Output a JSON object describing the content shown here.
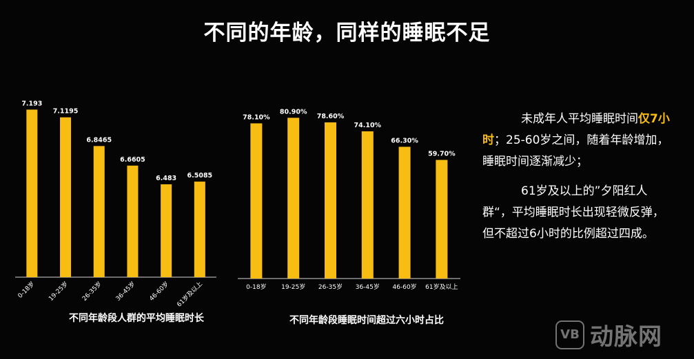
{
  "title": "不同的年龄，同样的睡眠不足",
  "chart_data": [
    {
      "type": "bar",
      "title": "不同年龄段人群的平均睡眠时长",
      "categories": [
        "0-18岁",
        "19-25岁",
        "26-35岁",
        "36-45岁",
        "46-60岁",
        "61岁及以上"
      ],
      "values": [
        7.193,
        7.1195,
        6.8465,
        6.6605,
        6.483,
        6.5085
      ],
      "labels": [
        "7.193",
        "7.1195",
        "6.8465",
        "6.6605",
        "6.483",
        "6.5085"
      ],
      "ylim": [
        5.6,
        7.3
      ],
      "grid": false,
      "color": "#F8BD12"
    },
    {
      "type": "bar",
      "title": "不同年龄段睡眠时间超过六小时占比",
      "categories": [
        "0-18岁",
        "19-25岁",
        "26-35岁",
        "36-45岁",
        "46-60岁",
        "61岁及以上"
      ],
      "values": [
        78.1,
        80.9,
        78.6,
        74.1,
        66.3,
        59.7
      ],
      "labels": [
        "78.10%",
        "80.90%",
        "78.60%",
        "74.10%",
        "66.30%",
        "59.70%"
      ],
      "ylim": [
        0,
        90
      ],
      "grid": false,
      "color": "#F8BD12"
    }
  ],
  "side": {
    "p1_before": "未成年人平均睡眠时间",
    "p1_highlight": "仅7小时",
    "p1_after": "；25-60岁之间，随着年龄增加，睡眠时间逐渐减少；",
    "p2": "61岁及以上的”夕阳红人群“，平均睡眠时长出现轻微反弹，但不超过6小时的比例超过四成。"
  },
  "watermark": {
    "logo": "VB",
    "text": "动脉网"
  }
}
